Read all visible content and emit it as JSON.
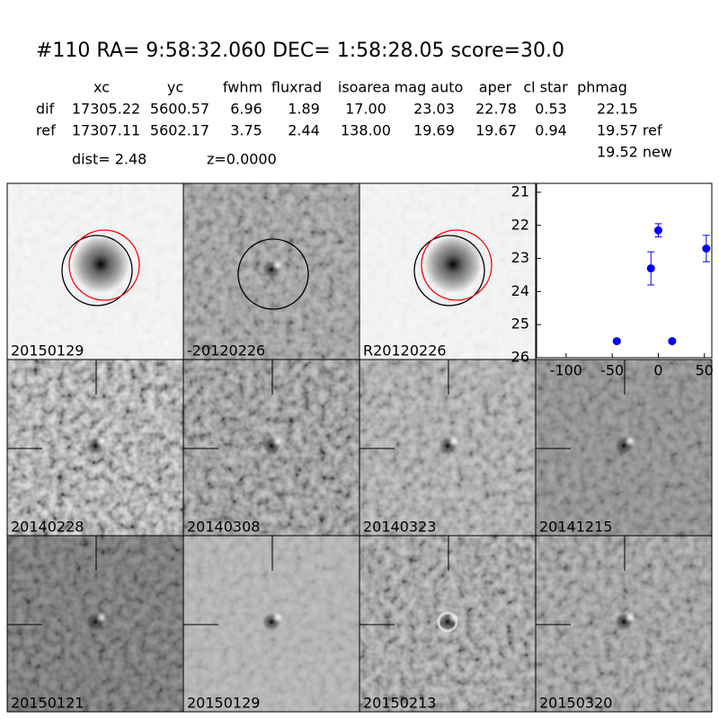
{
  "header": {
    "title": "#110   RA= 9:58:32.060 DEC= 1:58:28.05       score=30.0",
    "dist": "dist=  2.48",
    "z": "z=0.0000",
    "note": "19.52 new"
  },
  "table": {
    "columns": [
      "xc",
      "yc",
      "fwhm",
      "fluxrad",
      "isoarea",
      "mag auto",
      "aper",
      "cl star",
      "phmag"
    ],
    "rows": [
      [
        "dif",
        "17305.22",
        "5600.57",
        "6.96",
        "1.89",
        "17.00",
        "23.03",
        "22.78",
        "0.53",
        "22.15"
      ],
      [
        "ref",
        "17307.11",
        "5602.17",
        "3.75",
        "2.44",
        "138.00",
        "19.69",
        "19.67",
        "0.94",
        "19.57 ref"
      ]
    ]
  },
  "panels": [
    {
      "label": "20150129"
    },
    {
      "label": "-20120226"
    },
    {
      "label": "R20120226"
    },
    {
      "label": "20140228"
    },
    {
      "label": "20140308"
    },
    {
      "label": "20140323"
    },
    {
      "label": "20141215"
    },
    {
      "label": "20150121"
    },
    {
      "label": "20150129",
      "color": "#ff0000"
    },
    {
      "label": "20150213"
    },
    {
      "label": "20150320"
    }
  ],
  "chart_data": {
    "type": "scatter",
    "x": [
      -45,
      -8,
      0,
      15,
      52
    ],
    "series": [
      {
        "color": "#0000ff",
        "values": [
          25.5,
          23.3,
          22.15,
          25.5,
          22.7
        ],
        "errors": [
          0.05,
          0.5,
          0.2,
          0.05,
          0.4
        ]
      }
    ],
    "xlim": [
      -132,
      58
    ],
    "ylim": [
      26,
      20.73
    ],
    "xticks": [
      -100,
      -50,
      0,
      50
    ],
    "yticks": [
      21,
      22,
      23,
      24,
      25,
      26
    ]
  }
}
